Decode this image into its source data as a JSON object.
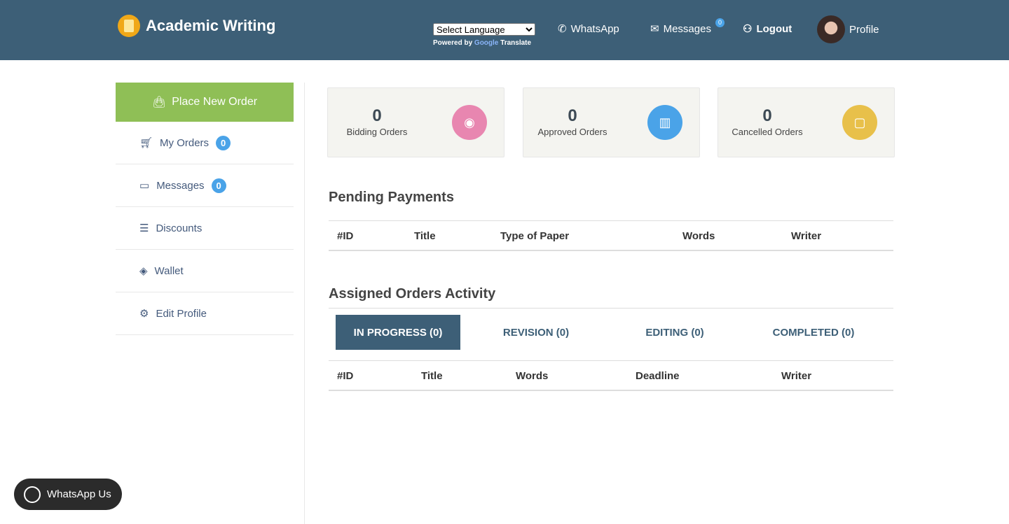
{
  "header": {
    "brand": "Academic Writing",
    "language_select": "Select Language",
    "powered_by": "Powered by",
    "google": "Google",
    "translate": "Translate",
    "whatsapp": "WhatsApp",
    "messages": "Messages",
    "messages_badge": "0",
    "logout": "Logout",
    "profile": "Profile"
  },
  "sidebar": {
    "place_order": "Place New Order",
    "items": [
      {
        "label": "My Orders",
        "badge": "0",
        "icon": "cart-icon"
      },
      {
        "label": "Messages",
        "badge": "0",
        "icon": "chat-icon"
      },
      {
        "label": "Discounts",
        "icon": "list-icon"
      },
      {
        "label": "Wallet",
        "icon": "layers-icon"
      },
      {
        "label": "Edit Profile",
        "icon": "gear-icon"
      }
    ]
  },
  "cards": [
    {
      "count": "0",
      "label": "Bidding Orders",
      "color": "#e886b0",
      "icon": "eye-icon"
    },
    {
      "count": "0",
      "label": "Approved Orders",
      "color": "#4aa3e8",
      "icon": "chart-icon"
    },
    {
      "count": "0",
      "label": "Cancelled Orders",
      "color": "#e8c04a",
      "icon": "bag-icon"
    }
  ],
  "pending": {
    "title": "Pending Payments",
    "columns": [
      "#ID",
      "Title",
      "Type of Paper",
      "Words",
      "Writer"
    ]
  },
  "assigned": {
    "title": "Assigned Orders Activity",
    "tabs": [
      "IN PROGRESS (0)",
      "REVISION (0)",
      "EDITING (0)",
      "COMPLETED (0)"
    ],
    "columns": [
      "#ID",
      "Title",
      "Words",
      "Deadline",
      "Writer"
    ]
  },
  "whatsapp_us": "WhatsApp Us"
}
